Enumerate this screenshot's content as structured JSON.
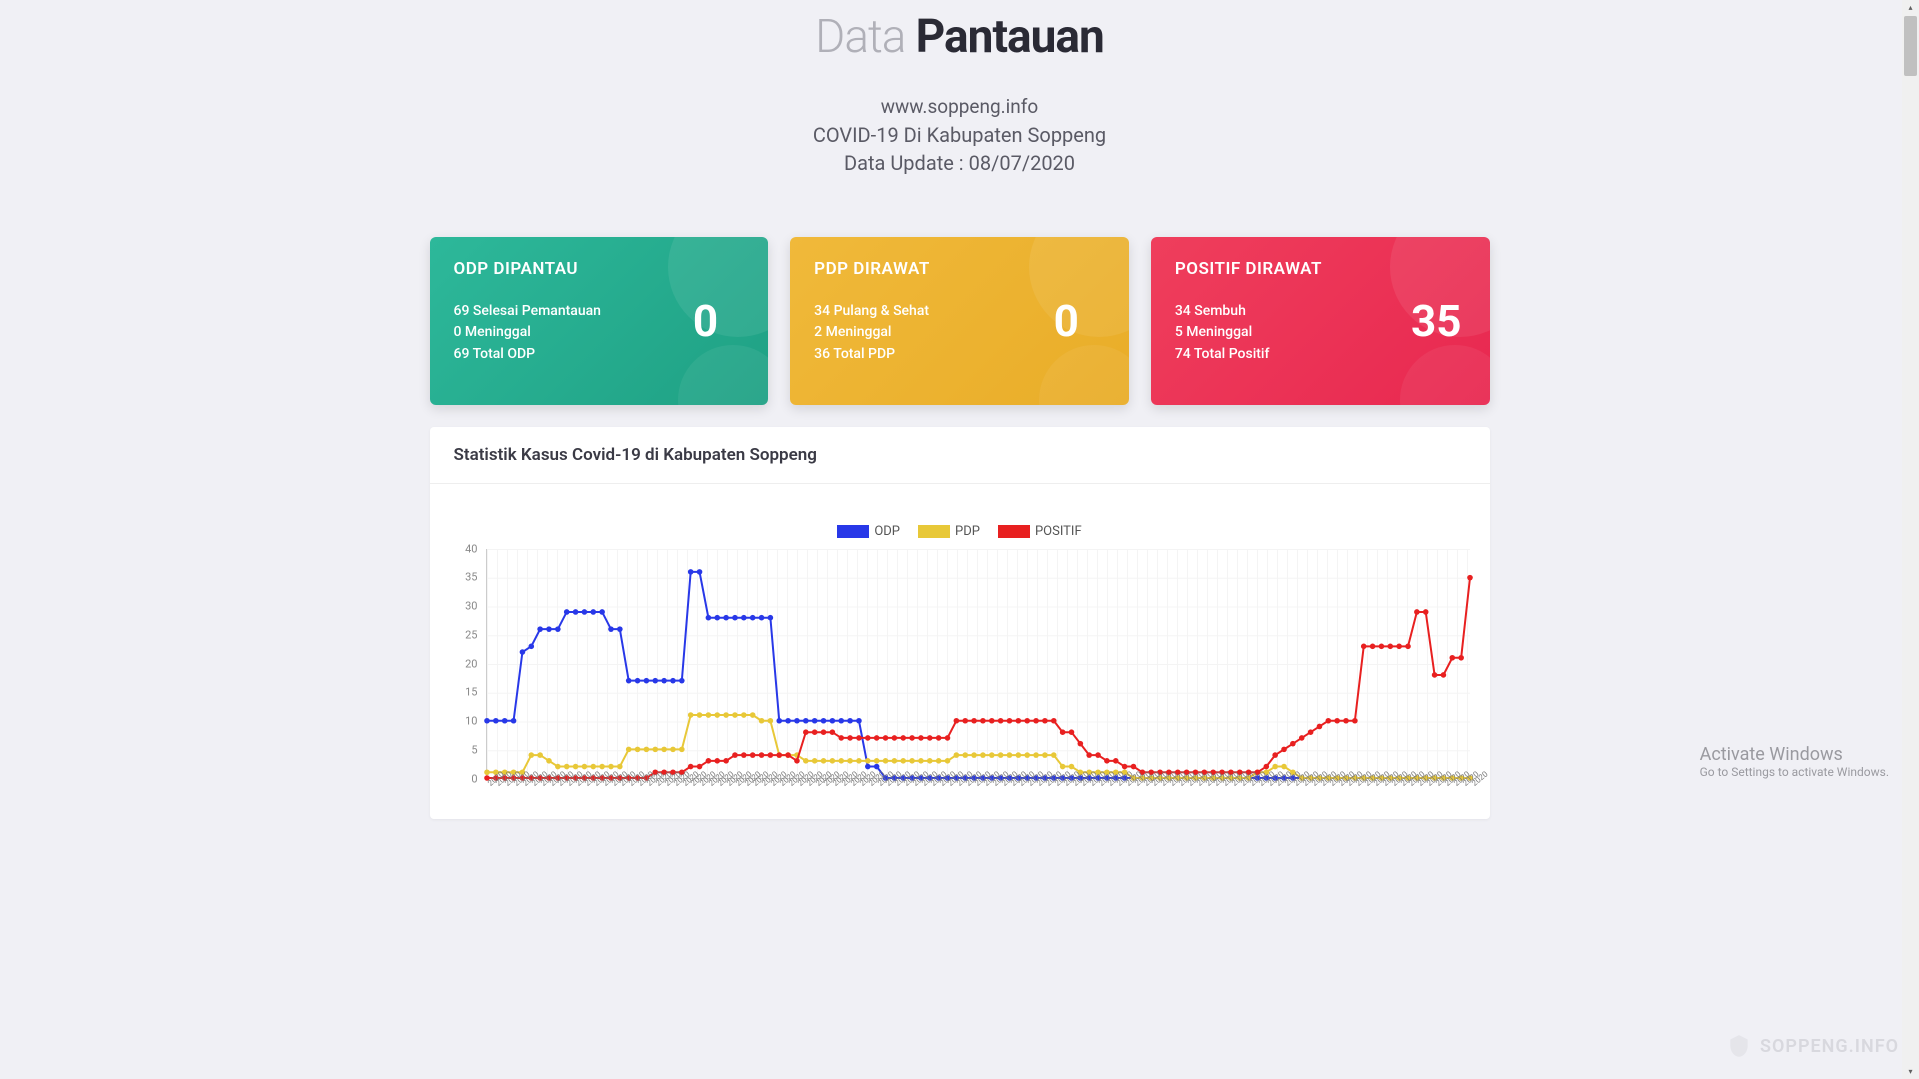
{
  "page": {
    "title_light": "Data ",
    "title_bold": "Pantauan",
    "url": "www.soppeng.info",
    "desc": "COVID-19 Di Kabupaten Soppeng",
    "update": "Data Update : 08/07/2020"
  },
  "cards": {
    "odp": {
      "title": "ODP DIPANTAU",
      "number": "0",
      "lines": [
        "69 Selesai Pemantauan",
        "0 Meninggal",
        "69 Total ODP"
      ],
      "bg": "#2db89a"
    },
    "pdp": {
      "title": "PDP DIRAWAT",
      "number": "0",
      "lines": [
        "34 Pulang & Sehat",
        "2 Meninggal",
        "36 Total PDP"
      ],
      "bg": "#f0b93a"
    },
    "positif": {
      "title": "POSITIF DIRAWAT",
      "number": "35",
      "lines": [
        "34 Sembuh",
        "5 Meninggal",
        "74 Total Positif"
      ],
      "bg": "#ef3e5c"
    }
  },
  "chart": {
    "title": "Statistik Kasus Covid-19 di Kabupaten Soppeng",
    "type": "line",
    "ylim": [
      0,
      40
    ],
    "yticks": [
      0,
      5,
      10,
      15,
      20,
      25,
      30,
      35,
      40
    ],
    "legend": [
      {
        "label": "ODP",
        "color": "#2838e8"
      },
      {
        "label": "PDP",
        "color": "#e8c838"
      },
      {
        "label": "POSITIF",
        "color": "#e82020"
      }
    ],
    "grid_color": "#f4f4f4",
    "background_color": "#ffffff",
    "marker_radius": 2.8,
    "line_width": 2,
    "series": {
      "ODP": [
        10,
        10,
        10,
        10,
        22,
        23,
        26,
        26,
        26,
        29,
        29,
        29,
        29,
        29,
        26,
        26,
        17,
        17,
        17,
        17,
        17,
        17,
        17,
        36,
        36,
        28,
        28,
        28,
        28,
        28,
        28,
        28,
        28,
        10,
        10,
        10,
        10,
        10,
        10,
        10,
        10,
        10,
        10,
        2,
        2,
        0,
        0,
        0,
        0,
        0,
        0,
        0,
        0,
        0,
        0,
        0,
        0,
        0,
        0,
        0,
        0,
        0,
        0,
        0,
        0,
        0,
        0,
        0,
        0,
        0,
        0,
        0,
        0,
        0,
        0,
        0,
        0,
        0,
        0,
        0,
        0,
        0,
        0,
        0,
        0,
        0,
        0,
        0,
        0,
        0,
        0,
        0,
        0,
        0,
        0,
        0,
        0,
        0,
        0,
        0,
        0,
        0,
        0,
        0,
        0,
        0,
        0,
        0,
        0,
        0,
        0,
        0
      ],
      "PDP": [
        1,
        1,
        1,
        1,
        1,
        4,
        4,
        3,
        2,
        2,
        2,
        2,
        2,
        2,
        2,
        2,
        5,
        5,
        5,
        5,
        5,
        5,
        5,
        11,
        11,
        11,
        11,
        11,
        11,
        11,
        11,
        10,
        10,
        4,
        4,
        4,
        3,
        3,
        3,
        3,
        3,
        3,
        3,
        3,
        3,
        3,
        3,
        3,
        3,
        3,
        3,
        3,
        3,
        4,
        4,
        4,
        4,
        4,
        4,
        4,
        4,
        4,
        4,
        4,
        4,
        2,
        2,
        1,
        1,
        1,
        1,
        1,
        1,
        0,
        0,
        0,
        0,
        0,
        0,
        0,
        0,
        0,
        0,
        0,
        0,
        0,
        0,
        1,
        1,
        2,
        2,
        1,
        0,
        0,
        0,
        0,
        0,
        0,
        0,
        0,
        0,
        0,
        0,
        0,
        0,
        0,
        0,
        0,
        0,
        0,
        0,
        0
      ],
      "POSITIF": [
        0,
        0,
        0,
        0,
        0,
        0,
        0,
        0,
        0,
        0,
        0,
        0,
        0,
        0,
        0,
        0,
        0,
        0,
        0,
        1,
        1,
        1,
        1,
        2,
        2,
        3,
        3,
        3,
        4,
        4,
        4,
        4,
        4,
        4,
        4,
        3,
        8,
        8,
        8,
        8,
        7,
        7,
        7,
        7,
        7,
        7,
        7,
        7,
        7,
        7,
        7,
        7,
        7,
        10,
        10,
        10,
        10,
        10,
        10,
        10,
        10,
        10,
        10,
        10,
        10,
        8,
        8,
        6,
        4,
        4,
        3,
        3,
        2,
        2,
        1,
        1,
        1,
        1,
        1,
        1,
        1,
        1,
        1,
        1,
        1,
        1,
        1,
        1,
        2,
        4,
        5,
        6,
        7,
        8,
        9,
        10,
        10,
        10,
        10,
        23,
        23,
        23,
        23,
        23,
        23,
        29,
        29,
        18,
        18,
        21,
        21,
        35
      ]
    },
    "x_label_sample": "2020"
  },
  "watermark": {
    "line1": "Activate Windows",
    "line2": "Go to Settings to activate Windows."
  },
  "brand": "SOPPENG.INFO"
}
